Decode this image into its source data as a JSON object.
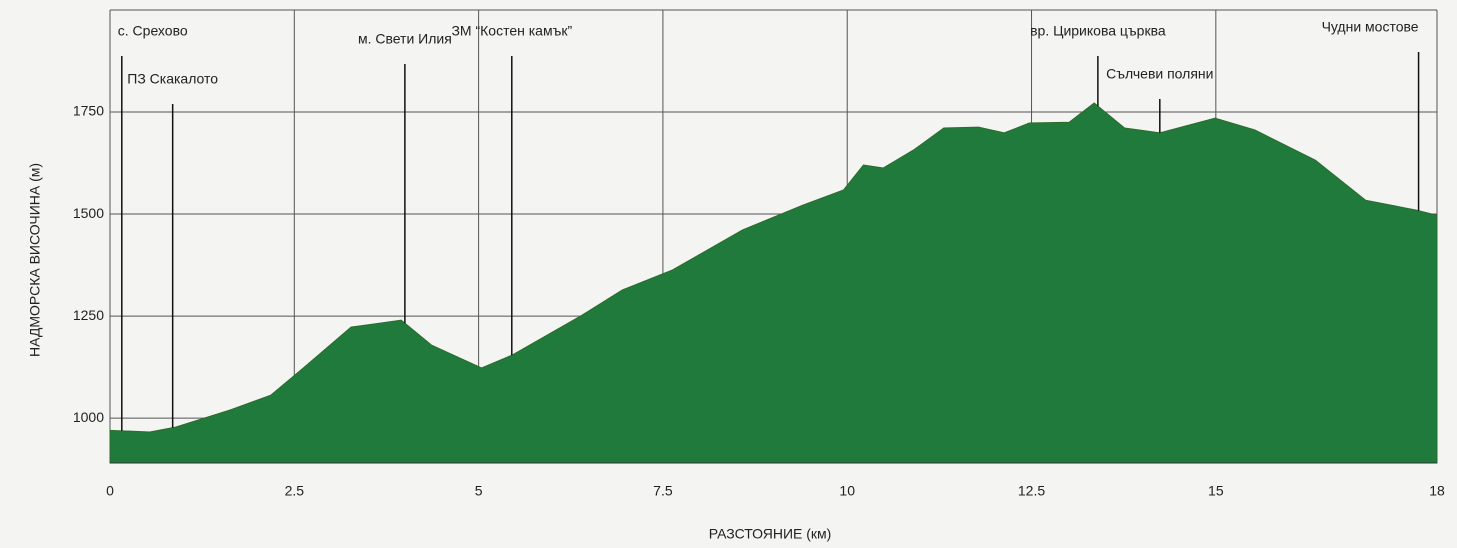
{
  "chart_data": {
    "type": "area",
    "ylabel": "НАДМОРСКА ВИСОЧИНА (м)",
    "xlabel": "РАЗСТОЯНИЕ (км)",
    "color": "#1f7a3c",
    "x": [
      0,
      0.54,
      0.89,
      1.63,
      2.18,
      2.59,
      3.27,
      3.95,
      4.36,
      5.04,
      5.45,
      6.4,
      6.95,
      7.63,
      8.58,
      9.4,
      9.95,
      10.22,
      10.49,
      10.9,
      11.31,
      11.78,
      12.13,
      12.47,
      13.01,
      13.35,
      13.76,
      14.24,
      14.99,
      15.53,
      16.35,
      17.03,
      17.71,
      18
    ],
    "values": [
      970,
      966,
      978,
      1020,
      1056,
      1118,
      1223,
      1240,
      1179,
      1123,
      1154,
      1252,
      1314,
      1363,
      1461,
      1522,
      1559,
      1620,
      1613,
      1657,
      1711,
      1713,
      1699,
      1723,
      1725,
      1772,
      1711,
      1699,
      1735,
      1706,
      1632,
      1534,
      1510,
      1497
    ],
    "xlim": [
      0,
      18
    ],
    "xticks": [
      0,
      2.5,
      5,
      7.5,
      10,
      12.5,
      15,
      18
    ],
    "ylim": [
      890,
      2000
    ],
    "yticks": [
      1000,
      1250,
      1500,
      1750
    ],
    "grid": true,
    "annotations": [
      {
        "text": "с. Срехово",
        "x": 0.16
      },
      {
        "text": "ПЗ Скакалото",
        "x": 0.85
      },
      {
        "text": "м. Свети Илия",
        "x": 4.0
      },
      {
        "text": "ЗМ “Костен камък”",
        "x": 5.45
      },
      {
        "text": "вр. Цирикова църква",
        "x": 13.4
      },
      {
        "text": "Сълчеви поляни",
        "x": 14.24
      },
      {
        "text": "Чудни мостове",
        "x": 17.75
      }
    ]
  }
}
